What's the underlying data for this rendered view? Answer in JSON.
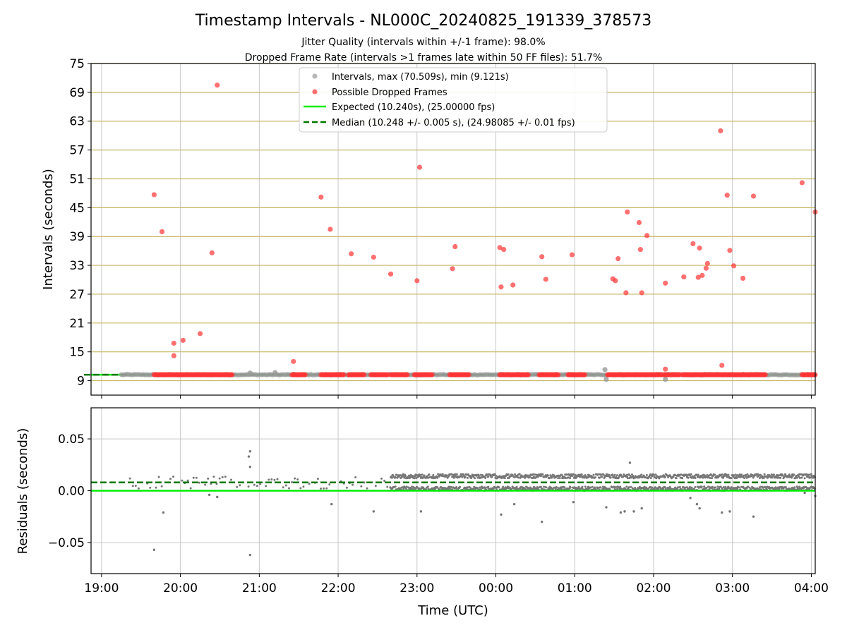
{
  "title": "Timestamp Intervals - NL000C_20240825_191339_378573",
  "subtitle_lines": [
    "Jitter Quality (intervals within +/-1 frame): 98.0%",
    "Dropped Frame Rate (intervals >1 frames late within 50 FF files): 51.7%"
  ],
  "colors": {
    "intervals": "#999999",
    "dropped": "#ff3333",
    "expected": "#00ee00",
    "median": "#007700",
    "hgrid_top": "#c8b560",
    "grid": "#c8c8c8",
    "residual_points": "#777777"
  },
  "chart_data": [
    {
      "type": "scatter",
      "title": "Timestamp Intervals - NL000C_20240825_191339_378573",
      "xlabel": "",
      "ylabel": "Intervals (seconds)",
      "x_axis": "time of day (UTC), 2024-08-25 to 2024-08-26",
      "xlim": [
        "2024-08-25 18:52",
        "2024-08-26 04:03"
      ],
      "ylim": [
        6,
        75
      ],
      "yticks": [
        9,
        15,
        21,
        27,
        33,
        39,
        45,
        51,
        57,
        63,
        69,
        75
      ],
      "xticks": [
        "19:00",
        "20:00",
        "21:00",
        "22:00",
        "23:00",
        "00:00",
        "01:00",
        "02:00",
        "03:00",
        "04:00"
      ],
      "grid": true,
      "legend_position": "top-center",
      "legend": [
        "Intervals, max (70.509s), min (9.121s)",
        "Possible Dropped Frames",
        "Expected (10.240s), (25.00000 fps)",
        "Median (10.248 +/- 0.005 s), (24.98085 +/- 0.01 fps)"
      ],
      "series": [
        {
          "name": "Intervals, max (70.509s), min (9.121s)",
          "kind": "points",
          "band": {
            "x_start": "19:15",
            "x_end": "04:03",
            "y": 10.25
          },
          "points": [
            {
              "x": "20:53",
              "y": 10.6
            },
            {
              "x": "21:12",
              "y": 10.7
            },
            {
              "x": "01:23",
              "y": 11.3
            },
            {
              "x": "01:24",
              "y": 9.3
            },
            {
              "x": "02:09",
              "y": 9.3
            }
          ]
        },
        {
          "name": "Possible Dropped Frames",
          "kind": "points",
          "band_segments": [
            [
              "19:40",
              "20:15"
            ],
            [
              "20:15",
              "20:40"
            ],
            [
              "21:25",
              "21:35"
            ],
            [
              "21:47",
              "22:05"
            ],
            [
              "22:08",
              "22:20"
            ],
            [
              "22:25",
              "22:38"
            ],
            [
              "22:40",
              "22:53"
            ],
            [
              "22:58",
              "23:12"
            ],
            [
              "23:25",
              "23:40"
            ],
            [
              "00:03",
              "00:25"
            ],
            [
              "00:33",
              "00:48"
            ],
            [
              "00:55",
              "01:08"
            ],
            [
              "01:25",
              "02:07"
            ],
            [
              "02:08",
              "02:20"
            ],
            [
              "02:22",
              "03:25"
            ],
            [
              "03:53",
              "04:03"
            ]
          ],
          "band_y": 10.24,
          "points": [
            {
              "x": "19:40",
              "y": 47.7
            },
            {
              "x": "19:46",
              "y": 40.0
            },
            {
              "x": "19:55",
              "y": 16.8
            },
            {
              "x": "19:55",
              "y": 14.2
            },
            {
              "x": "20:02",
              "y": 17.4
            },
            {
              "x": "20:15",
              "y": 18.8
            },
            {
              "x": "20:24",
              "y": 35.6
            },
            {
              "x": "20:28",
              "y": 70.5
            },
            {
              "x": "21:26",
              "y": 13.0
            },
            {
              "x": "21:47",
              "y": 47.2
            },
            {
              "x": "21:54",
              "y": 40.5
            },
            {
              "x": "22:10",
              "y": 35.4
            },
            {
              "x": "22:27",
              "y": 34.7
            },
            {
              "x": "22:40",
              "y": 31.2
            },
            {
              "x": "23:00",
              "y": 29.8
            },
            {
              "x": "23:02",
              "y": 53.4
            },
            {
              "x": "23:27",
              "y": 32.3
            },
            {
              "x": "23:29",
              "y": 36.9
            },
            {
              "x": "00:03",
              "y": 36.7
            },
            {
              "x": "00:04",
              "y": 28.5
            },
            {
              "x": "00:06",
              "y": 36.3
            },
            {
              "x": "00:13",
              "y": 28.9
            },
            {
              "x": "00:35",
              "y": 34.8
            },
            {
              "x": "00:38",
              "y": 30.1
            },
            {
              "x": "00:58",
              "y": 35.2
            },
            {
              "x": "01:29",
              "y": 30.2
            },
            {
              "x": "01:31",
              "y": 29.8
            },
            {
              "x": "01:33",
              "y": 34.4
            },
            {
              "x": "01:39",
              "y": 27.3
            },
            {
              "x": "01:40",
              "y": 44.1
            },
            {
              "x": "01:49",
              "y": 41.9
            },
            {
              "x": "01:50",
              "y": 36.3
            },
            {
              "x": "01:51",
              "y": 27.3
            },
            {
              "x": "01:55",
              "y": 39.2
            },
            {
              "x": "02:09",
              "y": 29.3
            },
            {
              "x": "02:09",
              "y": 11.4
            },
            {
              "x": "02:23",
              "y": 30.6
            },
            {
              "x": "02:30",
              "y": 37.5
            },
            {
              "x": "02:34",
              "y": 30.5
            },
            {
              "x": "02:35",
              "y": 36.6
            },
            {
              "x": "02:37",
              "y": 30.9
            },
            {
              "x": "02:40",
              "y": 32.4
            },
            {
              "x": "02:41",
              "y": 33.4
            },
            {
              "x": "02:51",
              "y": 61.0
            },
            {
              "x": "02:52",
              "y": 12.2
            },
            {
              "x": "02:56",
              "y": 47.6
            },
            {
              "x": "02:58",
              "y": 36.1
            },
            {
              "x": "03:01",
              "y": 32.9
            },
            {
              "x": "03:08",
              "y": 30.3
            },
            {
              "x": "03:16",
              "y": 47.4
            },
            {
              "x": "03:53",
              "y": 50.2
            },
            {
              "x": "04:03",
              "y": 44.1
            }
          ]
        },
        {
          "name": "Expected (10.240s), (25.00000 fps)",
          "kind": "hline",
          "y": 10.24
        },
        {
          "name": "Median (10.248 +/- 0.005 s), (24.98085 +/- 0.01 fps)",
          "kind": "hline_dashed",
          "y": 10.248
        }
      ]
    },
    {
      "type": "scatter",
      "xlabel": "Time (UTC)",
      "ylabel": "Residuals (seconds)",
      "xlim": [
        "2024-08-25 18:52",
        "2024-08-26 04:03"
      ],
      "ylim": [
        -0.08,
        0.08
      ],
      "yticks": [
        -0.05,
        0.0,
        0.05
      ],
      "ytick_labels": [
        "−0.05",
        "0.00",
        "0.05"
      ],
      "xticks": [
        "19:00",
        "20:00",
        "21:00",
        "22:00",
        "23:00",
        "00:00",
        "01:00",
        "02:00",
        "03:00",
        "04:00"
      ],
      "grid": true,
      "lines": [
        {
          "kind": "expected",
          "y": 0.0
        },
        {
          "kind": "median_dashed",
          "y": 0.008
        }
      ],
      "dense_region": {
        "x_start": "22:40",
        "x_end": "04:03",
        "y_low": 0.0,
        "y_high": 0.016
      },
      "sparse_region": {
        "x_start": "19:15",
        "x_end": "22:40",
        "y_center": 0.008
      },
      "outliers": [
        {
          "x": "19:40",
          "y": -0.057
        },
        {
          "x": "19:47",
          "y": -0.021
        },
        {
          "x": "20:53",
          "y": -0.062
        },
        {
          "x": "20:53",
          "y": 0.038
        },
        {
          "x": "20:52",
          "y": 0.033
        },
        {
          "x": "20:53",
          "y": 0.023
        },
        {
          "x": "20:22",
          "y": -0.004
        },
        {
          "x": "20:28",
          "y": -0.006
        },
        {
          "x": "21:55",
          "y": -0.013
        },
        {
          "x": "22:27",
          "y": -0.02
        },
        {
          "x": "23:03",
          "y": -0.02
        },
        {
          "x": "00:04",
          "y": -0.023
        },
        {
          "x": "00:14",
          "y": -0.013
        },
        {
          "x": "00:35",
          "y": -0.03
        },
        {
          "x": "00:59",
          "y": -0.011
        },
        {
          "x": "01:24",
          "y": -0.016
        },
        {
          "x": "01:35",
          "y": -0.021
        },
        {
          "x": "01:38",
          "y": -0.02
        },
        {
          "x": "01:42",
          "y": 0.027
        },
        {
          "x": "01:45",
          "y": -0.02
        },
        {
          "x": "01:51",
          "y": -0.017
        },
        {
          "x": "02:28",
          "y": -0.007
        },
        {
          "x": "02:33",
          "y": -0.013
        },
        {
          "x": "02:35",
          "y": -0.017
        },
        {
          "x": "02:52",
          "y": -0.021
        },
        {
          "x": "02:58",
          "y": -0.02
        },
        {
          "x": "03:16",
          "y": -0.025
        },
        {
          "x": "03:55",
          "y": -0.002
        },
        {
          "x": "04:03",
          "y": -0.005
        }
      ]
    }
  ]
}
